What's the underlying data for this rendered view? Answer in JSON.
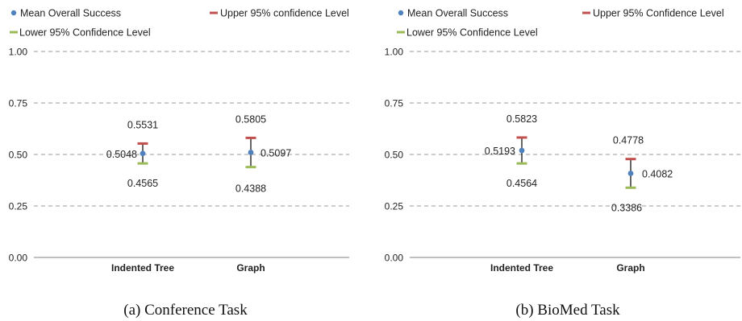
{
  "colors": {
    "mean": "#4f81bd",
    "upper": "#c0504d",
    "lower": "#9bbb59",
    "grid": "#9a9a9a",
    "axis": "#808080",
    "whisker": "#000000"
  },
  "chart_data": [
    {
      "type": "scatter",
      "caption": "(a) Conference Task",
      "legend": {
        "mean": "Mean Overall Success",
        "upper": "Upper 95% confidence Level",
        "lower": "Lower 95% Confidence Level"
      },
      "categories": [
        "Indented Tree",
        "Graph"
      ],
      "yticks": [
        "0.00",
        "0.25",
        "0.50",
        "0.75",
        "1.00"
      ],
      "ylim": [
        0,
        1
      ],
      "mean": [
        0.5048,
        0.5097
      ],
      "upper": [
        0.5531,
        0.5805
      ],
      "lower": [
        0.4565,
        0.4388
      ],
      "mean_labels": [
        "0.5048",
        "0.5097"
      ],
      "upper_labels": [
        "0.5531",
        "0.5805"
      ],
      "lower_labels": [
        "0.4565",
        "0.4388"
      ]
    },
    {
      "type": "scatter",
      "caption": "(b) BioMed Task",
      "legend": {
        "mean": "Mean Overall Success",
        "upper": "Upper 95% Confidence Level",
        "lower": "Lower 95% Confidence Level"
      },
      "categories": [
        "Indented Tree",
        "Graph"
      ],
      "yticks": [
        "0.00",
        "0.25",
        "0.50",
        "0.75",
        "1.00"
      ],
      "ylim": [
        0,
        1
      ],
      "mean": [
        0.5193,
        0.4082
      ],
      "upper": [
        0.5823,
        0.4778
      ],
      "lower": [
        0.4564,
        0.3386
      ],
      "mean_labels": [
        "0.5193",
        "0.4082"
      ],
      "upper_labels": [
        "0.5823",
        "0.4778"
      ],
      "lower_labels": [
        "0.4564",
        "0.3386"
      ]
    }
  ]
}
